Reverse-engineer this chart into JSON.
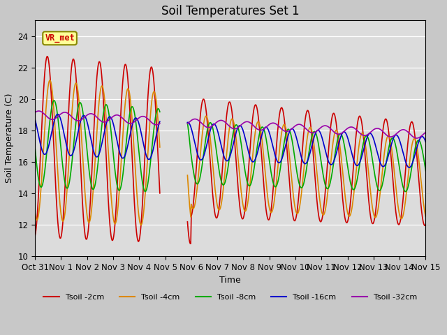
{
  "title": "Soil Temperatures Set 1",
  "xlabel": "Time",
  "ylabel": "Soil Temperature (C)",
  "ylim": [
    10,
    25
  ],
  "xtick_labels": [
    "Oct 31",
    "Nov 1",
    "Nov 2",
    "Nov 3",
    "Nov 4",
    "Nov 5",
    "Nov 6",
    "Nov 7",
    "Nov 8",
    "Nov 9",
    "Nov 10",
    "Nov 11",
    "Nov 12",
    "Nov 13",
    "Nov 14",
    "Nov 15"
  ],
  "yticks": [
    10,
    12,
    14,
    16,
    18,
    20,
    22,
    24
  ],
  "colors": {
    "2cm": "#cc0000",
    "4cm": "#dd8800",
    "8cm": "#00aa00",
    "16cm": "#0000cc",
    "32cm": "#9900aa"
  },
  "annotation_text": "VR_met",
  "annotation_color": "#cc0000",
  "annotation_bg": "#ffff99",
  "annotation_border": "#888800",
  "fig_bg": "#c8c8c8",
  "plot_bg": "#dcdcdc",
  "grid_color": "#ffffff",
  "title_fontsize": 12,
  "lw": 1.2
}
